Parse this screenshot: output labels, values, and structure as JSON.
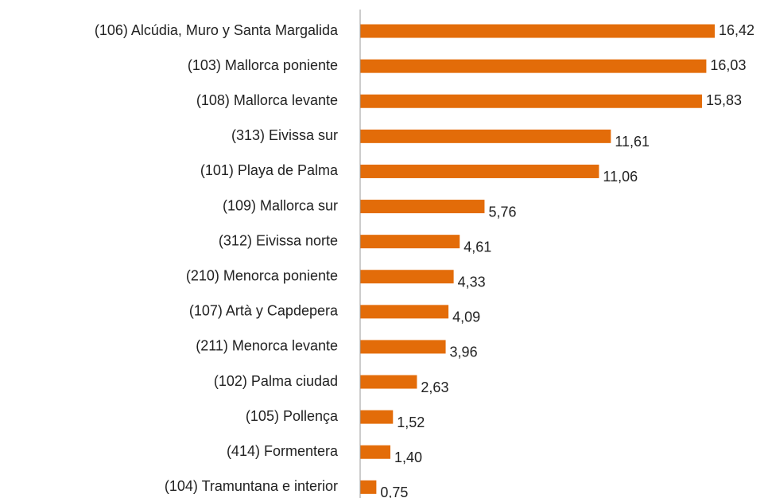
{
  "chart_data": {
    "type": "bar",
    "orientation": "horizontal",
    "color": "#e36c09",
    "categories": [
      "(106) Alcúdia, Muro y Santa Margalida",
      "(103) Mallorca poniente",
      "(108) Mallorca levante",
      "(313) Eivissa sur",
      "(101) Playa de Palma",
      "(109) Mallorca sur",
      "(312) Eivissa norte",
      "(210) Menorca poniente",
      "(107) Artà y Capdepera",
      "(211) Menorca levante",
      "(102) Palma ciudad",
      "(105) Pollença",
      "(414) Formentera",
      "(104) Tramuntana e interior"
    ],
    "values": [
      16.42,
      16.03,
      15.83,
      11.61,
      11.06,
      5.76,
      4.61,
      4.33,
      4.09,
      3.96,
      2.63,
      1.52,
      1.4,
      0.75
    ],
    "value_labels": [
      "16,42",
      "16,03",
      "15,83",
      "11,61",
      "11,06",
      "5,76",
      "4,61",
      "4,33",
      "4,09",
      "3,96",
      "2,63",
      "1,52",
      "1,40",
      "0,75"
    ]
  }
}
